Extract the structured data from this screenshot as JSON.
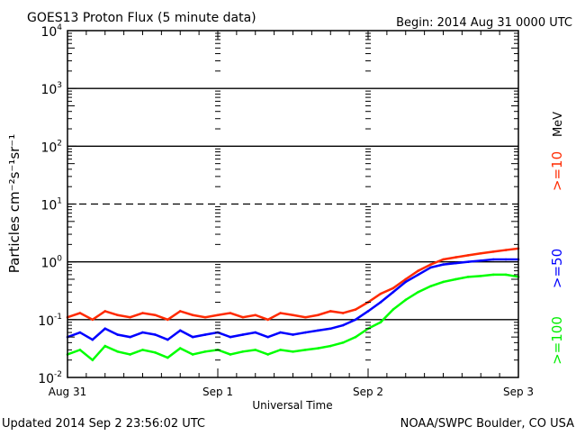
{
  "chart_data": {
    "type": "line",
    "title": "GOES13 Proton Flux (5 minute data)",
    "begin_label": "Begin: 2014 Aug 31 0000 UTC",
    "xlabel": "Universal Time",
    "ylabel": "Particles cm⁻²s⁻¹sr⁻¹",
    "yscale": "log",
    "ylim": [
      0.01,
      10000
    ],
    "yticks": [
      {
        "base": "10",
        "exp": "-2",
        "value": 0.01
      },
      {
        "base": "10",
        "exp": "-1",
        "value": 0.1
      },
      {
        "base": "10",
        "exp": "0",
        "value": 1
      },
      {
        "base": "10",
        "exp": "1",
        "value": 10
      },
      {
        "base": "10",
        "exp": "2",
        "value": 100
      },
      {
        "base": "10",
        "exp": "3",
        "value": 1000
      },
      {
        "base": "10",
        "exp": "4",
        "value": 10000
      }
    ],
    "xlim_hours": [
      0,
      72
    ],
    "xticks": [
      {
        "label": "Aug 31",
        "hour": 0
      },
      {
        "label": "Sep 1",
        "hour": 24
      },
      {
        "label": "Sep 2",
        "hour": 48
      },
      {
        "label": "Sep 3",
        "hour": 72
      }
    ],
    "threshold_line": 10,
    "solid_gridlines": [
      0.1,
      1,
      100,
      1000
    ],
    "x_hours": [
      0,
      2,
      4,
      6,
      8,
      10,
      12,
      14,
      16,
      18,
      20,
      22,
      24,
      26,
      28,
      30,
      32,
      34,
      36,
      38,
      40,
      42,
      44,
      46,
      48,
      50,
      52,
      54,
      56,
      58,
      60,
      62,
      64,
      66,
      68,
      70,
      72
    ],
    "series": [
      {
        "name": ">=10",
        "color": "#ff2a00",
        "values": [
          0.11,
          0.13,
          0.1,
          0.14,
          0.12,
          0.11,
          0.13,
          0.12,
          0.1,
          0.14,
          0.12,
          0.11,
          0.12,
          0.13,
          0.11,
          0.12,
          0.1,
          0.13,
          0.12,
          0.11,
          0.12,
          0.14,
          0.13,
          0.15,
          0.2,
          0.28,
          0.35,
          0.5,
          0.7,
          0.9,
          1.1,
          1.2,
          1.3,
          1.4,
          1.5,
          1.6,
          1.7
        ]
      },
      {
        "name": ">=50",
        "color": "#0000ff",
        "values": [
          0.05,
          0.06,
          0.045,
          0.07,
          0.055,
          0.05,
          0.06,
          0.055,
          0.045,
          0.065,
          0.05,
          0.055,
          0.06,
          0.05,
          0.055,
          0.06,
          0.05,
          0.06,
          0.055,
          0.06,
          0.065,
          0.07,
          0.08,
          0.1,
          0.14,
          0.2,
          0.3,
          0.45,
          0.6,
          0.8,
          0.9,
          0.95,
          1.0,
          1.05,
          1.1,
          1.1,
          1.1
        ]
      },
      {
        "name": ">=100",
        "color": "#00ff00",
        "values": [
          0.025,
          0.03,
          0.02,
          0.035,
          0.028,
          0.025,
          0.03,
          0.027,
          0.022,
          0.032,
          0.025,
          0.028,
          0.03,
          0.025,
          0.028,
          0.03,
          0.025,
          0.03,
          0.028,
          0.03,
          0.032,
          0.035,
          0.04,
          0.05,
          0.07,
          0.09,
          0.15,
          0.22,
          0.3,
          0.38,
          0.45,
          0.5,
          0.55,
          0.57,
          0.6,
          0.6,
          0.55
        ]
      }
    ],
    "legend_unit": "MeV",
    "legend_placement": "right"
  },
  "footer": {
    "updated": "Updated 2014 Sep  2 23:56:02 UTC",
    "credit": "NOAA/SWPC Boulder, CO USA"
  }
}
